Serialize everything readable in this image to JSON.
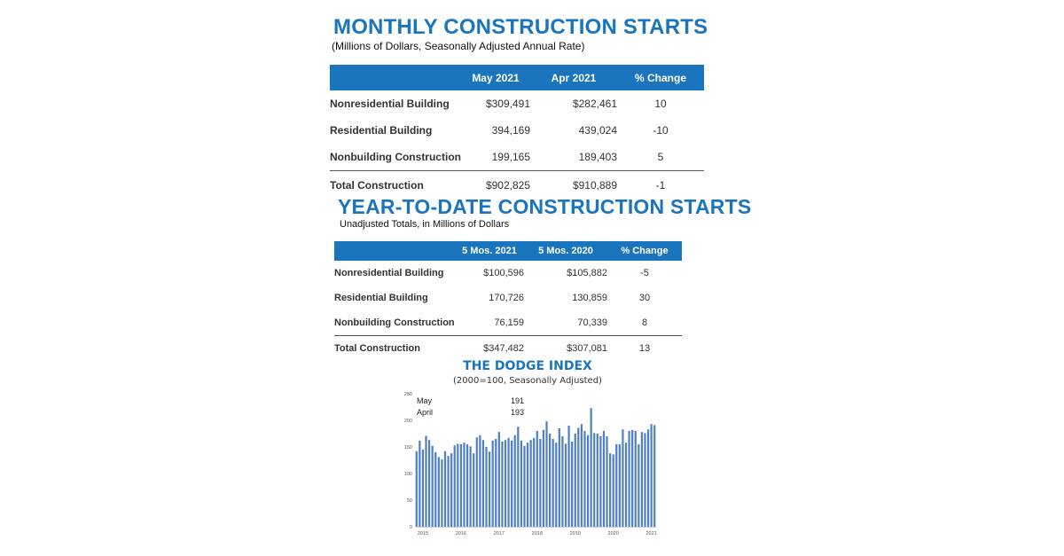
{
  "monthly": {
    "title": "MONTHLY CONSTRUCTION STARTS",
    "subtitle": "(Millions of Dollars, Seasonally Adjusted Annual Rate)",
    "headers": [
      "",
      "May 2021",
      "Apr 2021",
      "% Change"
    ],
    "rows": [
      {
        "label": "Nonresidential Building",
        "a": "$309,491",
        "b": "$282,461",
        "pct": "10"
      },
      {
        "label": "Residential Building",
        "a": "394,169",
        "b": "439,024",
        "pct": "-10"
      },
      {
        "label": "Nonbuilding Construction",
        "a": "199,165",
        "b": "189,403",
        "pct": "5"
      },
      {
        "label": "Total Construction",
        "a": "$902,825",
        "b": "$910,889",
        "pct": "-1"
      }
    ]
  },
  "ytd": {
    "title": "YEAR-TO-DATE CONSTRUCTION STARTS",
    "subtitle": "Unadjusted Totals, in Millions of Dollars",
    "headers": [
      "",
      "5 Mos. 2021",
      "5 Mos. 2020",
      "% Change"
    ],
    "rows": [
      {
        "label": "Nonresidential Building",
        "a": "$100,596",
        "b": "$105,882",
        "pct": "-5"
      },
      {
        "label": "Residential Building",
        "a": "170,726",
        "b": "130,859",
        "pct": "30"
      },
      {
        "label": "Nonbuilding Construction",
        "a": "76,159",
        "b": "70,339",
        "pct": "8"
      },
      {
        "label": "Total Construction",
        "a": "$347,482",
        "b": "$307,081",
        "pct": "13"
      }
    ]
  },
  "chart": {
    "title": "THE DODGE INDEX",
    "subtitle": "(2000=100, Seasonally Adjusted)",
    "title_color": "#1a75bc",
    "bar_color": "#4f7fc4",
    "annotation": [
      {
        "label": "May",
        "value": "191"
      },
      {
        "label": "April",
        "value": "193"
      }
    ]
  },
  "chart_data": {
    "type": "bar",
    "title": "THE DODGE INDEX",
    "subtitle": "(2000=100, Seasonally Adjusted)",
    "xlabel": "",
    "ylabel": "",
    "ylim": [
      0,
      250
    ],
    "yticks": [
      0,
      50,
      100,
      150,
      200,
      250
    ],
    "xticks": [
      "2015",
      "2016",
      "2017",
      "2018",
      "2019",
      "2020",
      "2021"
    ],
    "series": [
      {
        "values": [
          142,
          162,
          145,
          171,
          163,
          152,
          140,
          131,
          127,
          142,
          133,
          138,
          153,
          156,
          155,
          158,
          155,
          151,
          138,
          168,
          172,
          163,
          150,
          141,
          162,
          165,
          178,
          160,
          163,
          167,
          162,
          172,
          188,
          162,
          152,
          158,
          163,
          167,
          180,
          165,
          182,
          198,
          175,
          165,
          158,
          185,
          170,
          156,
          190,
          160,
          175,
          186,
          193,
          180,
          172,
          223,
          176,
          175,
          170,
          180,
          170,
          138,
          136,
          155,
          155,
          183,
          158,
          180,
          182,
          180,
          155,
          178,
          176,
          183,
          193,
          191
        ]
      }
    ],
    "grid": false
  }
}
